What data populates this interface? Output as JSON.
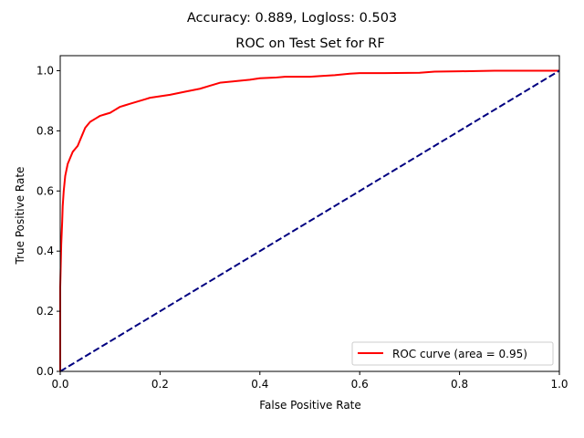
{
  "figure": {
    "suptitle": "Accuracy: 0.889, Logloss: 0.503"
  },
  "chart_data": {
    "type": "line",
    "title": "ROC on Test Set for RF",
    "xlabel": "False Positive Rate",
    "ylabel": "True Positive Rate",
    "xlim": [
      0.0,
      1.0
    ],
    "ylim": [
      0.0,
      1.05
    ],
    "x_ticks": [
      "0.0",
      "0.2",
      "0.4",
      "0.6",
      "0.8",
      "1.0"
    ],
    "y_ticks": [
      "0.0",
      "0.2",
      "0.4",
      "0.6",
      "0.8",
      "1.0"
    ],
    "grid": false,
    "legend": {
      "placement": "lower-right",
      "entries": [
        "ROC curve (area = 0.95)"
      ]
    },
    "series": [
      {
        "name": "ROC curve (area = 0.95)",
        "color": "#ff0000",
        "style": "solid",
        "x": [
          0.0,
          0.0,
          0.002,
          0.004,
          0.005,
          0.007,
          0.01,
          0.015,
          0.02,
          0.025,
          0.03,
          0.035,
          0.04,
          0.045,
          0.05,
          0.055,
          0.06,
          0.07,
          0.08,
          0.09,
          0.1,
          0.11,
          0.12,
          0.13,
          0.14,
          0.15,
          0.16,
          0.17,
          0.18,
          0.2,
          0.22,
          0.25,
          0.28,
          0.3,
          0.32,
          0.35,
          0.38,
          0.4,
          0.43,
          0.45,
          0.5,
          0.52,
          0.55,
          0.58,
          0.6,
          0.65,
          0.72,
          0.75,
          0.8,
          0.87,
          0.9,
          1.0
        ],
        "y": [
          0.0,
          0.28,
          0.42,
          0.5,
          0.55,
          0.6,
          0.65,
          0.69,
          0.71,
          0.73,
          0.74,
          0.75,
          0.77,
          0.79,
          0.81,
          0.82,
          0.83,
          0.84,
          0.85,
          0.855,
          0.86,
          0.87,
          0.88,
          0.885,
          0.89,
          0.895,
          0.9,
          0.905,
          0.91,
          0.915,
          0.92,
          0.93,
          0.94,
          0.95,
          0.96,
          0.965,
          0.97,
          0.975,
          0.977,
          0.98,
          0.98,
          0.982,
          0.985,
          0.99,
          0.992,
          0.992,
          0.993,
          0.997,
          0.998,
          1.0,
          1.0,
          1.0
        ]
      },
      {
        "name": "",
        "color": "#000080",
        "style": "dashed",
        "x": [
          0.0,
          1.0
        ],
        "y": [
          0.0,
          1.0
        ]
      }
    ]
  }
}
